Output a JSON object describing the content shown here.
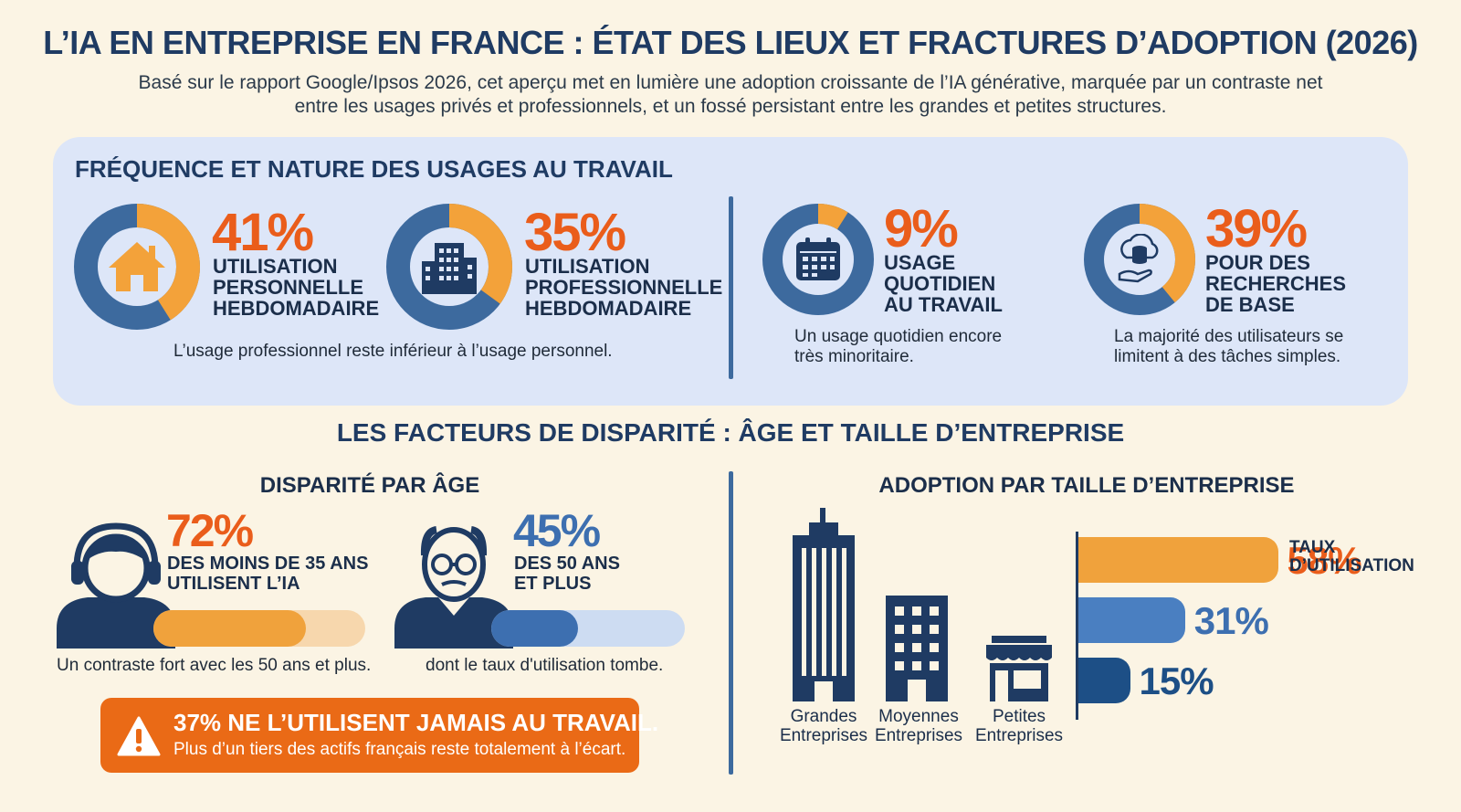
{
  "header": {
    "title": "L’IA EN ENTREPRISE EN FRANCE : ÉTAT DES LIEUX ET FRACTURES D’ADOPTION (2026)",
    "subtitle_line1": "Basé sur le rapport Google/Ipsos 2026, cet aperçu met en lumière une adoption croissante de l’IA générative, marquée par un contraste net",
    "subtitle_line2": "entre les usages privés et professionnels, et un fossé persistant entre les grandes et petites structures."
  },
  "usage_section": {
    "title": "FRÉQUENCE ET NATURE DES USAGES AU TRAVAIL",
    "stats": [
      {
        "pct": "41%",
        "value": 41,
        "label_lines": [
          "UTILISATION",
          "PERSONNELLE",
          "HEBDOMADAIRE"
        ],
        "icon": "home-icon"
      },
      {
        "pct": "35%",
        "value": 35,
        "label_lines": [
          "UTILISATION",
          "PROFESSIONNELLE",
          "HEBDOMADAIRE"
        ],
        "icon": "office-building-icon"
      },
      {
        "pct": "9%",
        "value": 9,
        "label_lines": [
          "USAGE",
          "QUOTIDIEN",
          "AU TRAVAIL"
        ],
        "icon": "calendar-icon"
      },
      {
        "pct": "39%",
        "value": 39,
        "label_lines": [
          "POUR DES",
          "RECHERCHES",
          "DE BASE"
        ],
        "icon": "cloud-database-icon"
      }
    ],
    "note_left": "L’usage professionnel reste inférieur à l’usage personnel.",
    "note_daily": [
      "Un usage quotidien encore",
      "très minoritaire."
    ],
    "note_search": [
      "La majorité des utilisateurs se",
      "limitent à des tâches simples."
    ]
  },
  "disparity_section": {
    "title": "LES FACTEURS DE DISPARITÉ : ÂGE ET TAILLE D’ENTREPRISE",
    "age": {
      "title": "DISPARITÉ PAR ÂGE",
      "young": {
        "pct": "72%",
        "value": 72,
        "label_lines": [
          "DES MOINS DE 35 ANS",
          "UTILISENT L’IA"
        ],
        "note": "Un contraste fort avec les 50 ans et plus.",
        "icon": "young-person-headphones-icon"
      },
      "old": {
        "pct": "45%",
        "value": 45,
        "label_lines": [
          "DES 50 ANS",
          "ET PLUS"
        ],
        "note": "dont le taux d'utilisation tombe.",
        "icon": "older-person-glasses-icon"
      }
    },
    "alert": {
      "title": "37% NE L’UTILISENT JAMAIS AU TRAVAIL.",
      "subtitle": "Plus d’un tiers des actifs français reste totalement à l’écart.",
      "icon": "warning-icon"
    },
    "size": {
      "title": "ADOPTION PAR TAILLE D’ENTREPRISE",
      "unit_label_lines": [
        "TAUX",
        "D’UTILISATION"
      ],
      "bars": [
        {
          "pct": "58%",
          "value": 58,
          "color": "#f0a23c",
          "text_color": "#ea5d1b"
        },
        {
          "pct": "31%",
          "value": 31,
          "color": "#4a7fc1",
          "text_color": "#3d6fb0"
        },
        {
          "pct": "15%",
          "value": 15,
          "color": "#1d4f86",
          "text_color": "#1d4f86"
        }
      ],
      "buildings": [
        {
          "label_lines": [
            "Grandes",
            "Entreprises"
          ],
          "icon": "skyscraper-icon"
        },
        {
          "label_lines": [
            "Moyennes",
            "Entreprises"
          ],
          "icon": "mid-building-icon"
        },
        {
          "label_lines": [
            "Petites",
            "Entreprises"
          ],
          "icon": "shop-icon"
        }
      ]
    }
  },
  "colors": {
    "navy": "#1f3b63",
    "orange": "#ea5d1b",
    "light_orange": "#f0a23c",
    "blue": "#3d6a9e",
    "panel": "#dde6f8",
    "background": "#fbf4e4"
  }
}
